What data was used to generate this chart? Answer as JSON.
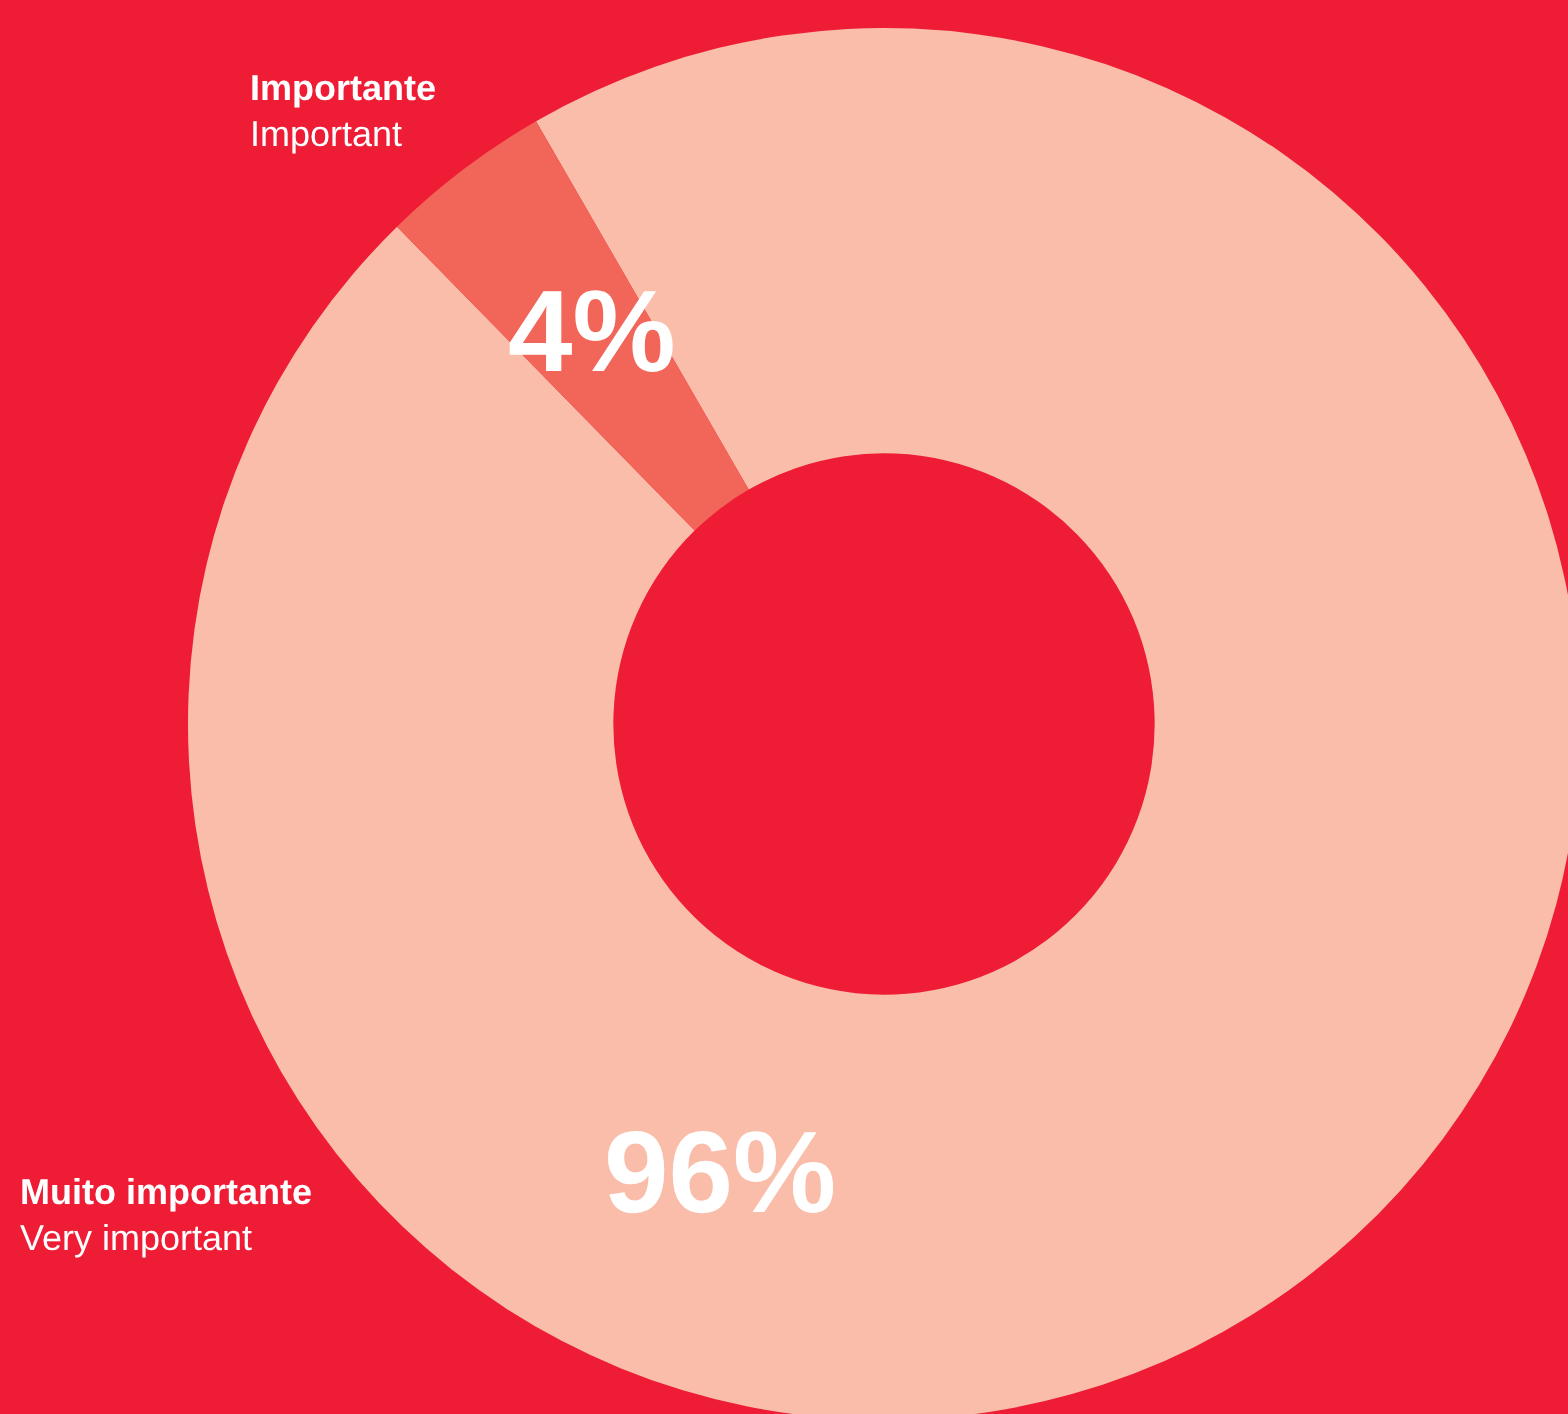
{
  "chart_data": {
    "type": "donut",
    "categories": [
      "Muito importante",
      "Importante"
    ],
    "values": [
      96,
      4
    ],
    "colors": [
      "#f9bdaa",
      "#f2665a"
    ],
    "value_labels": [
      "96%",
      "4%"
    ],
    "annotations": [
      "Very important",
      "Important"
    ]
  }
}
